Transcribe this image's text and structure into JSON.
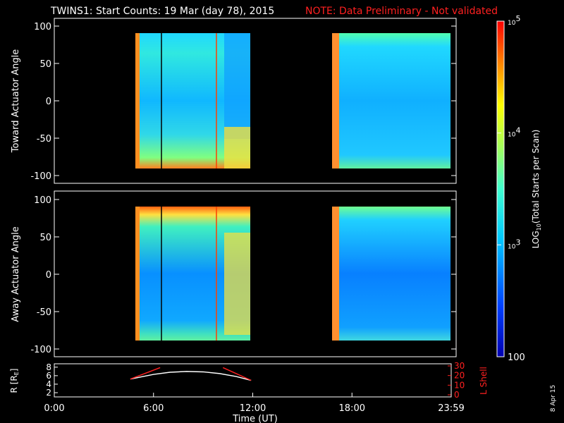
{
  "header": {
    "title": "TWINS1: Start Counts: 19 Mar (day  78), 2015",
    "note": "NOTE: Data Preliminary - Not validated",
    "note_color": "#ff2020",
    "date_stamp": "8 Apr 15"
  },
  "chart_data": [
    {
      "type": "heatmap",
      "name": "toward",
      "ylabel": "Toward Actuator Angle",
      "ylim": [
        -100,
        100
      ],
      "yticks": [
        "100",
        "50",
        "0",
        "-50",
        "-100"
      ],
      "xlim": [
        0,
        24
      ],
      "data_blocks_hours": [
        [
          4.6,
          11.9
        ],
        [
          16.8,
          24.0
        ]
      ],
      "color_scale": "log10"
    },
    {
      "type": "heatmap",
      "name": "away",
      "ylabel": "Away Actuator Angle",
      "ylim": [
        -100,
        100
      ],
      "yticks": [
        "100",
        "50",
        "0",
        "-50",
        "-100"
      ],
      "xlim": [
        0,
        24
      ],
      "data_blocks_hours": [
        [
          4.6,
          11.9
        ],
        [
          16.8,
          24.0
        ]
      ],
      "color_scale": "log10"
    },
    {
      "type": "line",
      "name": "orbit",
      "ylabel": "R [RE]",
      "ylabel_display": "R [R",
      "ylabel_sub": "E",
      "y2label": "L Shell",
      "y2label_color": "#ff2020",
      "yticks": [
        "8",
        "6",
        "4",
        "2"
      ],
      "y2ticks": [
        "30",
        "20",
        "10",
        "0"
      ],
      "xlabel": "Time (UT)",
      "xticks": [
        "0:00",
        "6:00",
        "12:00",
        "18:00",
        "23:59"
      ],
      "series": [
        {
          "color": "#ffffff",
          "x": [
            4.6,
            6,
            7,
            8,
            9,
            10,
            11,
            11.9
          ],
          "y": [
            5.2,
            6.3,
            6.8,
            7.0,
            6.9,
            6.5,
            5.8,
            4.9
          ]
        },
        {
          "color": "#ff2020",
          "x": [
            4.6,
            6.4
          ],
          "y": [
            5.2,
            7.9
          ]
        },
        {
          "color": "#ff2020",
          "x": [
            10.2,
            11.9
          ],
          "y": [
            7.9,
            4.9
          ]
        }
      ]
    }
  ],
  "colorbar": {
    "label": "LOG",
    "label_sub": "10",
    "label_rest": "(Total Starts per Scan)",
    "ticks": [
      {
        "base": "10",
        "exp": "5"
      },
      {
        "base": "10",
        "exp": "4"
      },
      {
        "base": "10",
        "exp": "3"
      },
      {
        "base": "100",
        "exp": ""
      }
    ]
  }
}
